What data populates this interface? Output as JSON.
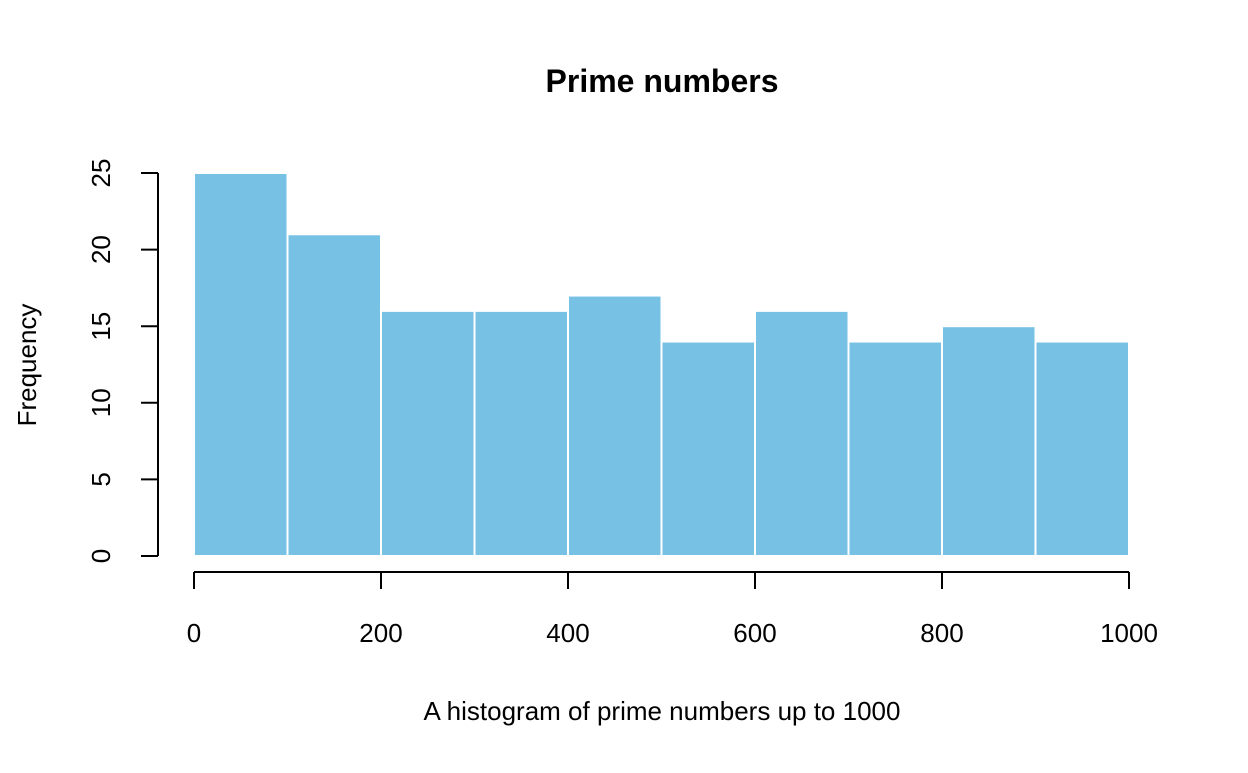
{
  "chart_data": {
    "type": "bar",
    "title": "Prime numbers",
    "xlabel": "A histogram of prime numbers up to 1000",
    "ylabel": "Frequency",
    "bins": [
      {
        "from": 0,
        "to": 100,
        "count": 25
      },
      {
        "from": 100,
        "to": 200,
        "count": 21
      },
      {
        "from": 200,
        "to": 300,
        "count": 16
      },
      {
        "from": 300,
        "to": 400,
        "count": 16
      },
      {
        "from": 400,
        "to": 500,
        "count": 17
      },
      {
        "from": 500,
        "to": 600,
        "count": 14
      },
      {
        "from": 600,
        "to": 700,
        "count": 16
      },
      {
        "from": 700,
        "to": 800,
        "count": 14
      },
      {
        "from": 800,
        "to": 900,
        "count": 15
      },
      {
        "from": 900,
        "to": 1000,
        "count": 14
      }
    ],
    "xlim": [
      0,
      1000
    ],
    "ylim": [
      0,
      25
    ],
    "x_ticks": [
      0,
      200,
      400,
      600,
      800,
      1000
    ],
    "y_ticks": [
      0,
      5,
      10,
      15,
      20,
      25
    ],
    "bar_color": "#77c1e4",
    "bar_border_color": "#ffffff",
    "grid": false,
    "legend": "none"
  }
}
